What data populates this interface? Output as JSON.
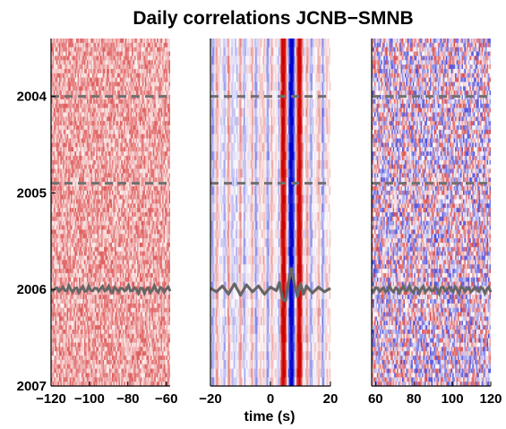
{
  "chart_data": {
    "type": "heatmap",
    "title": "Daily correlations JCNB−SMNB",
    "xlabel": "time (s)",
    "ylabel": "",
    "y_axis": {
      "range": [
        2003.4,
        2007.0
      ],
      "ticks": [
        2004,
        2005,
        2006,
        2007
      ],
      "tick_labels": [
        "2004",
        "2005",
        "2006",
        "2007"
      ],
      "direction": "increasing-downward"
    },
    "dashed_lines_years": [
      2004.0,
      2004.9
    ],
    "colormap": {
      "negative": "#0000cc",
      "zero": "#ffffff",
      "positive": "#cc0000"
    },
    "trace_color": "#666666",
    "dashed_color": "#707070",
    "panels": [
      {
        "name": "acausal-window",
        "xlim": [
          -120,
          -58
        ],
        "ticks": [
          -120,
          -100,
          -80,
          -60
        ],
        "tick_labels": [
          "−120",
          "−100",
          "−80",
          "−60"
        ],
        "description_level": "mostly-positive-noise",
        "trace_baseline_year": 2006.0,
        "trace_amplitude_years": 0.03
      },
      {
        "name": "central-window",
        "xlim": [
          -20,
          20
        ],
        "ticks": [
          -20,
          0,
          20
        ],
        "tick_labels": [
          "−20",
          "0",
          "20"
        ],
        "stack_trace": {
          "baseline_year": 2006.0,
          "t": [
            -20,
            -18,
            -16,
            -14,
            -12,
            -10,
            -8,
            -6,
            -4,
            -2,
            0,
            2,
            3,
            4,
            5,
            6,
            7,
            8,
            9,
            10,
            11,
            12,
            14,
            16,
            18,
            20
          ],
          "amplitude": [
            0.1,
            -0.2,
            0.3,
            -0.4,
            0.5,
            -0.5,
            0.4,
            -0.2,
            0.3,
            -0.4,
            0.2,
            -0.1,
            0.6,
            -0.8,
            -1.0,
            0.6,
            1.8,
            0.4,
            -0.6,
            0.5,
            -0.4,
            0.3,
            -0.3,
            0.2,
            -0.2,
            0.1
          ]
        }
      },
      {
        "name": "causal-window",
        "xlim": [
          58,
          120
        ],
        "ticks": [
          60,
          80,
          100,
          120
        ],
        "tick_labels": [
          "60",
          "80",
          "100",
          "120"
        ],
        "description_level": "mixed-noise",
        "trace_baseline_year": 2006.0,
        "trace_amplitude_years": 0.03
      }
    ]
  }
}
